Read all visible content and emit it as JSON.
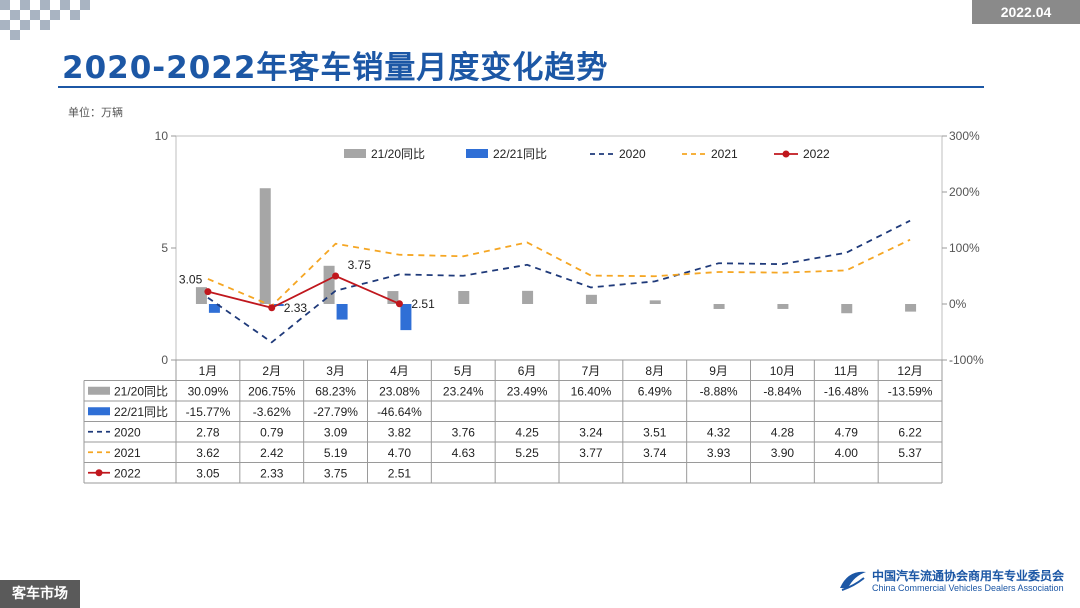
{
  "header": {
    "date": "2022.04",
    "title": "2020-2022年客车销量月度变化趋势",
    "unit": "单位：万辆"
  },
  "footer": {
    "section": "客车市场",
    "org_cn": "中国汽车流通协会商用车专业委员会",
    "org_en": "China Commercial Vehicles Dealers Association"
  },
  "colors": {
    "title": "#1c57a5",
    "gray_bar": "#a6a6a6",
    "blue_bar": "#2f6fd6",
    "line2020": "#1f3a7a",
    "line2021": "#f5a623",
    "line2022": "#c0171d"
  },
  "chart_data": {
    "type": "bar+line",
    "categories": [
      "1月",
      "2月",
      "3月",
      "4月",
      "5月",
      "6月",
      "7月",
      "8月",
      "9月",
      "10月",
      "11月",
      "12月"
    ],
    "y_left": {
      "ylim": [
        0,
        10
      ],
      "ticks": [
        0,
        5,
        10
      ],
      "tick_labels": [
        "0",
        "5",
        "10"
      ]
    },
    "y_right": {
      "ylim": [
        -100,
        300
      ],
      "ticks": [
        -100,
        0,
        100,
        200,
        300
      ],
      "tick_labels": [
        "-100%",
        "0%",
        "100%",
        "200%",
        "300%"
      ]
    },
    "bars": [
      {
        "name": "21/20同比",
        "axis": "right",
        "values": [
          30.09,
          206.75,
          68.23,
          23.08,
          23.24,
          23.49,
          16.4,
          6.49,
          -8.88,
          -8.84,
          -16.48,
          -13.59
        ],
        "labels": [
          "30.09%",
          "206.75%",
          "68.23%",
          "23.08%",
          "23.24%",
          "23.49%",
          "16.40%",
          "6.49%",
          "-8.88%",
          "-8.84%",
          "-16.48%",
          "-13.59%"
        ]
      },
      {
        "name": "22/21同比",
        "axis": "right",
        "values": [
          -15.77,
          -3.62,
          -27.79,
          -46.64
        ],
        "labels": [
          "-15.77%",
          "-3.62%",
          "-27.79%",
          "-46.64%"
        ]
      }
    ],
    "lines": [
      {
        "name": "2020",
        "style": "dashed",
        "values": [
          2.78,
          0.79,
          3.09,
          3.82,
          3.76,
          4.25,
          3.24,
          3.51,
          4.32,
          4.28,
          4.79,
          6.22
        ],
        "labels": [
          "2.78",
          "0.79",
          "3.09",
          "3.82",
          "3.76",
          "4.25",
          "3.24",
          "3.51",
          "4.32",
          "4.28",
          "4.79",
          "6.22"
        ]
      },
      {
        "name": "2021",
        "style": "dashed",
        "values": [
          3.62,
          2.42,
          5.19,
          4.7,
          4.63,
          5.25,
          3.77,
          3.74,
          3.93,
          3.9,
          4.0,
          5.37
        ],
        "labels": [
          "3.62",
          "2.42",
          "5.19",
          "4.70",
          "4.63",
          "5.25",
          "3.77",
          "3.74",
          "3.93",
          "3.90",
          "4.00",
          "5.37"
        ]
      },
      {
        "name": "2022",
        "style": "solid-marker",
        "values": [
          3.05,
          2.33,
          3.75,
          2.51
        ],
        "labels": [
          "3.05",
          "2.33",
          "3.75",
          "2.51"
        ]
      }
    ],
    "legend_position": "top",
    "grid": false
  }
}
